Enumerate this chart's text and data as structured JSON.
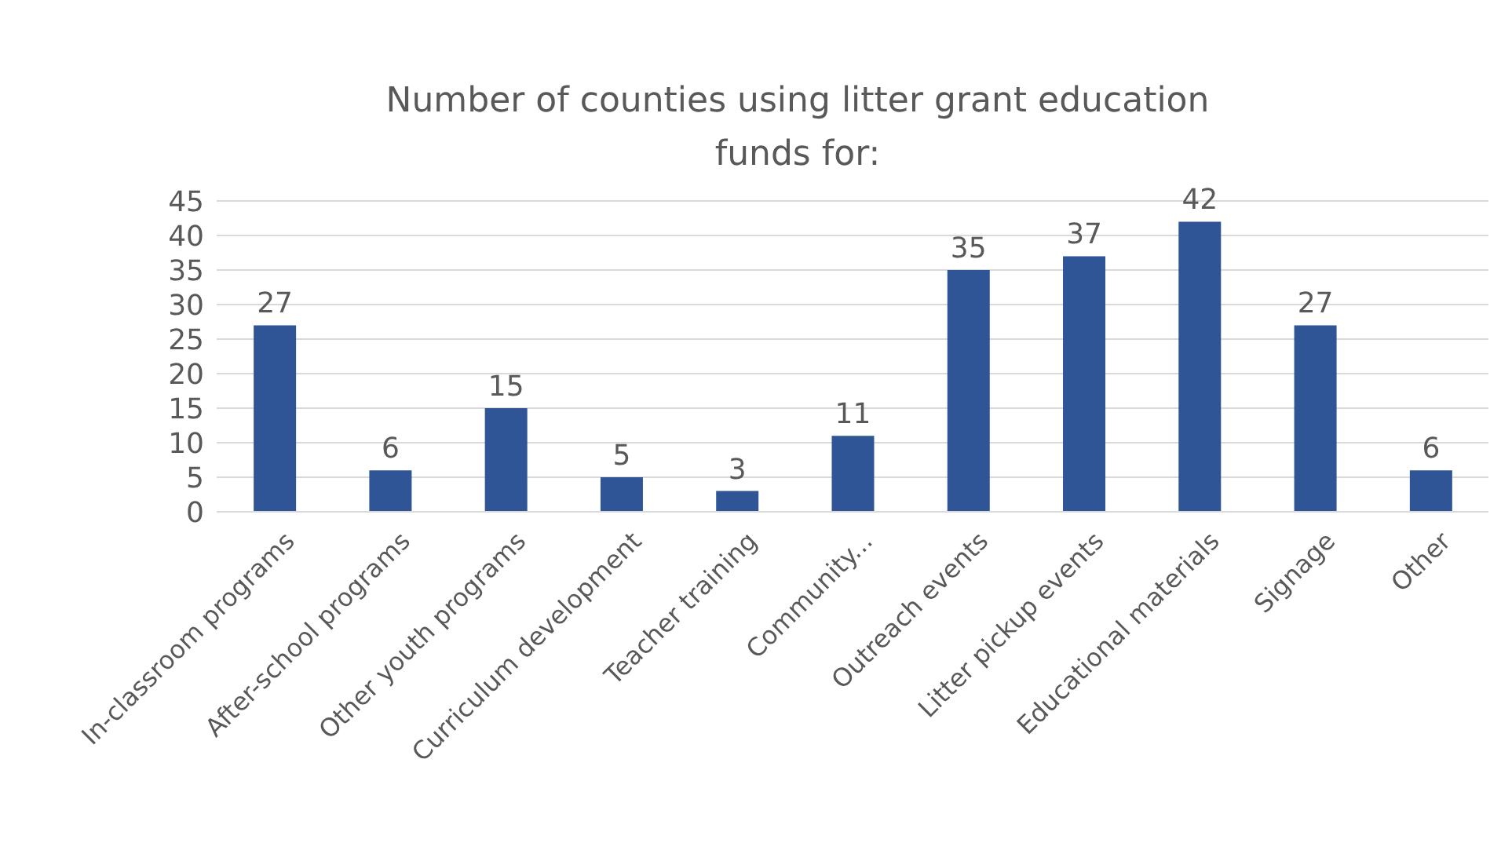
{
  "chart_data": {
    "type": "bar",
    "title": "Number of counties using litter grant education funds for:",
    "categories": [
      "In-classroom programs",
      "After-school programs",
      "Other youth programs",
      "Curriculum development",
      "Teacher training",
      "Community...",
      "Outreach events",
      "Litter pickup events",
      "Educational materials",
      "Signage",
      "Other"
    ],
    "values": [
      27,
      6,
      15,
      5,
      3,
      11,
      35,
      37,
      42,
      27,
      6
    ],
    "color": "#2f5597",
    "ylim": [
      0,
      45
    ],
    "yticks": [
      0,
      5,
      10,
      15,
      20,
      25,
      30,
      35,
      40,
      45
    ],
    "grid": "y",
    "data_labels": true
  }
}
